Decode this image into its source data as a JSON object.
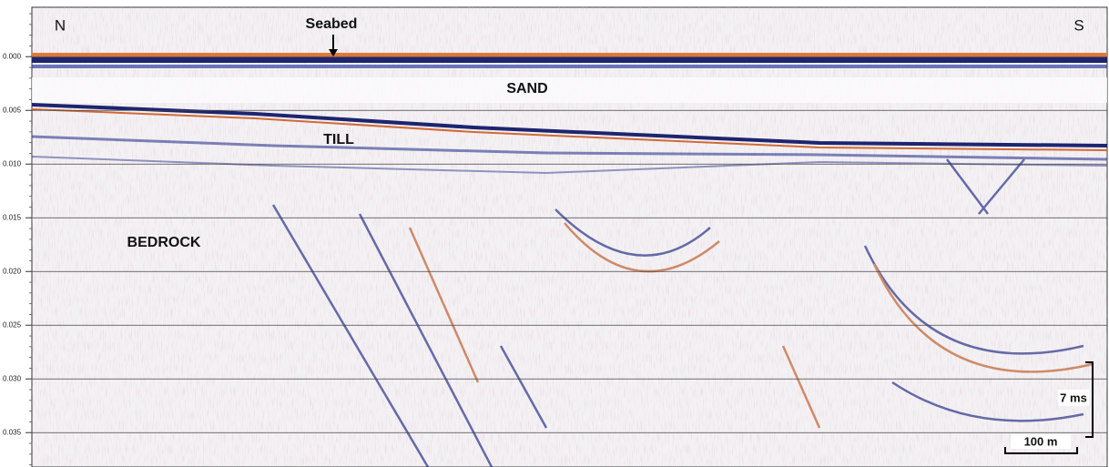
{
  "profile": {
    "ylim": [
      -0.0046,
      0.0382
    ],
    "yticks": [
      {
        "value": 0,
        "label": "0.000"
      },
      {
        "value": 0.005,
        "label": "0.005"
      },
      {
        "value": 0.01,
        "label": "0.010"
      },
      {
        "value": 0.015,
        "label": "0.015"
      },
      {
        "value": 0.02,
        "label": "0.020"
      },
      {
        "value": 0.025,
        "label": "0.025"
      },
      {
        "value": 0.03,
        "label": "0.030"
      },
      {
        "value": 0.035,
        "label": "0.035"
      }
    ],
    "annotations": [
      "N",
      "S",
      "Seabed",
      "SAND",
      "TILL",
      "BEDROCK"
    ],
    "scale_bars": [
      "7 ms",
      "100 m"
    ]
  }
}
